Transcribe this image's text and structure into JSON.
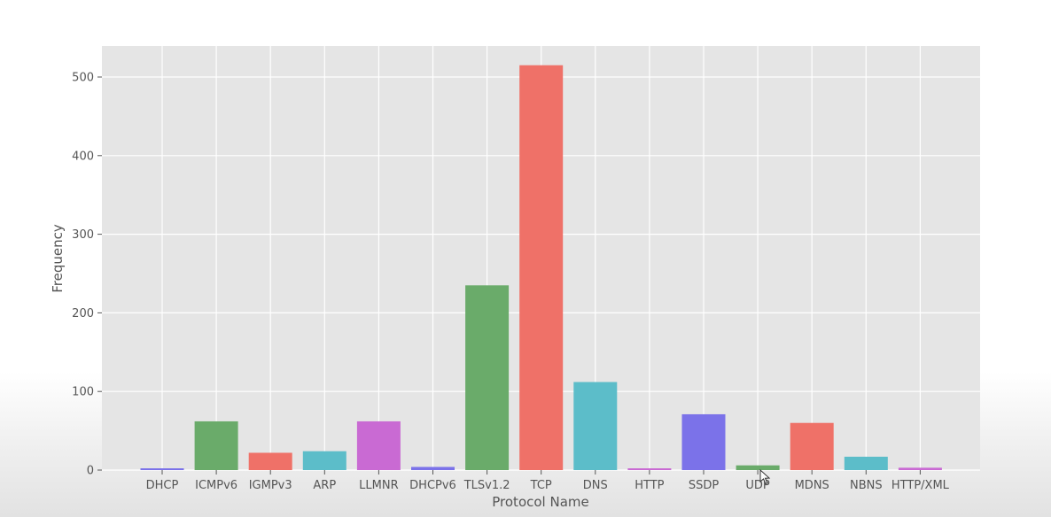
{
  "chart_data": {
    "type": "bar",
    "title": "",
    "xlabel": "Protocol Name",
    "ylabel": "Frequency",
    "categories": [
      "DHCP",
      "ICMPv6",
      "IGMPv3",
      "ARP",
      "LLMNR",
      "DHCPv6",
      "TLSv1.2",
      "TCP",
      "DNS",
      "HTTP",
      "SSDP",
      "UDP",
      "MDNS",
      "NBNS",
      "HTTP/XML"
    ],
    "values": [
      2,
      62,
      22,
      24,
      62,
      4,
      235,
      515,
      112,
      2,
      71,
      6,
      60,
      17,
      3
    ],
    "colors": [
      "#7b72e9",
      "#6aab6a",
      "#ef7168",
      "#5cbdc9",
      "#c96ad3",
      "#7b72e9",
      "#6aab6a",
      "#ef7168",
      "#5cbdc9",
      "#c96ad3",
      "#7b72e9",
      "#6aab6a",
      "#ef7168",
      "#5cbdc9",
      "#c96ad3"
    ],
    "ylim": [
      0,
      540
    ],
    "yticks": [
      0,
      100,
      200,
      300,
      400,
      500
    ],
    "grid": true,
    "background": "#e5e5e5",
    "legend": "none"
  },
  "cursor_icon": "mouse-pointer-icon"
}
